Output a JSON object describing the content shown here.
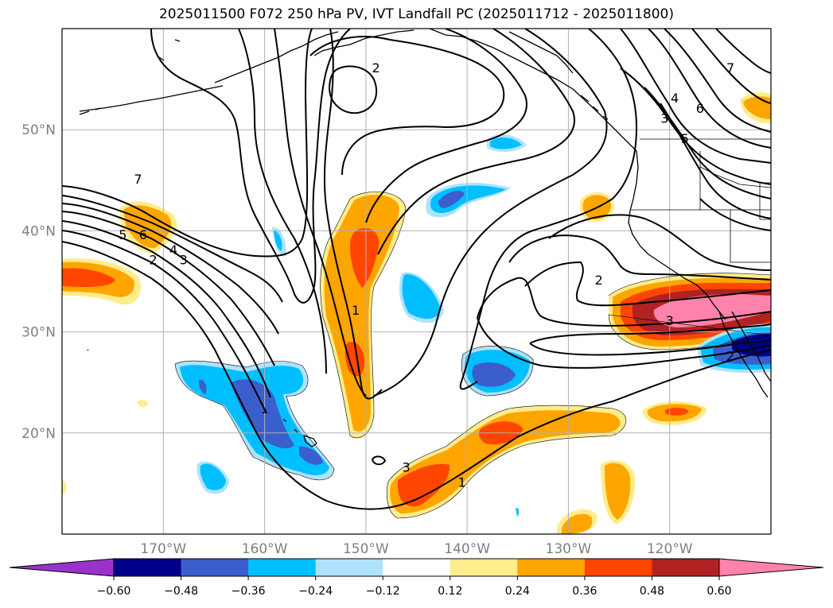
{
  "title": "2025011500 F072 250 hPa PV, IVT Landfall PC (2025011712 - 2025011800)",
  "map": {
    "projection": "PlateCarree",
    "lon_range": [
      -180,
      -110
    ],
    "lat_range": [
      10,
      60
    ],
    "lat_ticks": [
      {
        "value": 50,
        "label": "50°N"
      },
      {
        "value": 40,
        "label": "40°N"
      },
      {
        "value": 30,
        "label": "30°N"
      },
      {
        "value": 20,
        "label": "20°N"
      }
    ],
    "lon_ticks": [
      {
        "value": -170,
        "label": "170°W"
      },
      {
        "value": -160,
        "label": "160°W"
      },
      {
        "value": -150,
        "label": "150°W"
      },
      {
        "value": -140,
        "label": "140°W"
      },
      {
        "value": -130,
        "label": "130°W"
      },
      {
        "value": -120,
        "label": "120°W"
      }
    ],
    "gridlines": true,
    "coastline_color": "#000000",
    "gridline_color": "#b0b0b0",
    "contour_color": "#000000",
    "pv_contour_labels": [
      {
        "text": "2",
        "lon": -149,
        "lat": 56
      },
      {
        "text": "7",
        "lon": -172.5,
        "lat": 45
      },
      {
        "text": "5",
        "lon": -174,
        "lat": 39.5
      },
      {
        "text": "6",
        "lon": -172,
        "lat": 39.5
      },
      {
        "text": "4",
        "lon": -169,
        "lat": 38
      },
      {
        "text": "3",
        "lon": -168,
        "lat": 37
      },
      {
        "text": "2",
        "lon": -171,
        "lat": 37
      },
      {
        "text": "1",
        "lon": -151,
        "lat": 32
      },
      {
        "text": "3",
        "lon": -146,
        "lat": 16.5
      },
      {
        "text": "1",
        "lon": -140.5,
        "lat": 15
      },
      {
        "text": "2",
        "lon": -127,
        "lat": 35
      },
      {
        "text": "3",
        "lon": -120,
        "lat": 31
      },
      {
        "text": "2",
        "lon": -114,
        "lat": 27.5
      },
      {
        "text": "7",
        "lon": -114,
        "lat": 56
      },
      {
        "text": "4",
        "lon": -119.5,
        "lat": 53
      },
      {
        "text": "3",
        "lon": -120.5,
        "lat": 51
      },
      {
        "text": "6",
        "lon": -117,
        "lat": 52
      },
      {
        "text": "5",
        "lon": -118.5,
        "lat": 49
      }
    ]
  },
  "colorbar": {
    "levels": [
      "−0.60",
      "−0.48",
      "−0.36",
      "−0.24",
      "−0.12",
      "0.12",
      "0.24",
      "0.36",
      "0.48",
      "0.60"
    ],
    "colors": [
      "#9932cc",
      "#00008b",
      "#3a5fcd",
      "#00bfff",
      "#b0e2ff",
      "#ffffff",
      "#ffec8b",
      "#ffa500",
      "#ff4500",
      "#b22222",
      "#ff82ab"
    ]
  }
}
